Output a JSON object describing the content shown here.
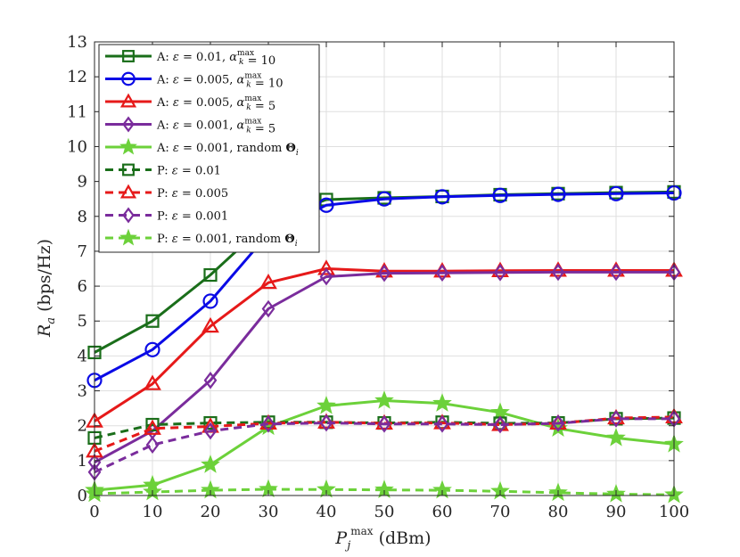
{
  "chart_data": {
    "type": "line",
    "xlabel": "P_j^max (dBm)",
    "ylabel": "R_a  (bps/Hz)",
    "xlim": [
      0,
      100
    ],
    "ylim": [
      0,
      13
    ],
    "xticks": [
      0,
      10,
      20,
      30,
      40,
      50,
      60,
      70,
      80,
      90,
      100
    ],
    "yticks": [
      0,
      1,
      2,
      3,
      4,
      5,
      6,
      7,
      8,
      9,
      10,
      11,
      12,
      13
    ],
    "grid": true,
    "legend_position": "top-left",
    "x": [
      0,
      10,
      20,
      30,
      40,
      50,
      60,
      70,
      80,
      90,
      100
    ],
    "series": [
      {
        "name": "A: ε = 0.01, α_k^max = 10",
        "color": "#1a6e1a",
        "dash": "solid",
        "marker": "square",
        "values": [
          4.1,
          5.0,
          6.32,
          7.85,
          8.48,
          8.53,
          8.57,
          8.62,
          8.65,
          8.68,
          8.7
        ]
      },
      {
        "name": "A: ε = 0.005, α_k^max = 10",
        "color": "#0a0ae6",
        "dash": "solid",
        "marker": "circle",
        "values": [
          3.3,
          4.18,
          5.57,
          7.5,
          8.32,
          8.5,
          8.56,
          8.6,
          8.63,
          8.65,
          8.67
        ]
      },
      {
        "name": "A: ε = 0.005, α_k^max = 5",
        "color": "#e61919",
        "dash": "solid",
        "marker": "triangle",
        "values": [
          2.13,
          3.2,
          4.85,
          6.1,
          6.5,
          6.43,
          6.43,
          6.44,
          6.45,
          6.45,
          6.45
        ]
      },
      {
        "name": "A: ε = 0.001, α_k^max = 5",
        "color": "#7a2c9c",
        "dash": "solid",
        "marker": "diamond",
        "values": [
          0.95,
          1.85,
          3.3,
          5.35,
          6.27,
          6.37,
          6.38,
          6.39,
          6.4,
          6.4,
          6.4
        ]
      },
      {
        "name": "A: ε = 0.001, random Θ_i",
        "color": "#6cd13a",
        "dash": "solid",
        "marker": "star",
        "values": [
          0.15,
          0.3,
          0.88,
          1.97,
          2.57,
          2.72,
          2.64,
          2.38,
          1.92,
          1.65,
          1.47
        ]
      },
      {
        "name": "P: ε = 0.01",
        "color": "#1a6e1a",
        "dash": "dashed",
        "marker": "square",
        "values": [
          1.65,
          2.03,
          2.08,
          2.1,
          2.1,
          2.08,
          2.1,
          2.07,
          2.08,
          2.2,
          2.22
        ]
      },
      {
        "name": "P: ε = 0.005",
        "color": "#e61919",
        "dash": "dashed",
        "marker": "triangle",
        "values": [
          1.27,
          1.92,
          1.98,
          2.07,
          2.1,
          2.07,
          2.08,
          2.03,
          2.07,
          2.22,
          2.25
        ]
      },
      {
        "name": "P: ε = 0.001",
        "color": "#7a2c9c",
        "dash": "dashed",
        "marker": "diamond",
        "values": [
          0.67,
          1.45,
          1.85,
          2.05,
          2.08,
          2.05,
          2.05,
          2.03,
          2.07,
          2.2,
          2.2
        ]
      },
      {
        "name": "P: ε = 0.001, random Θ_i",
        "color": "#6cd13a",
        "dash": "dashed",
        "marker": "star",
        "values": [
          0.05,
          0.1,
          0.15,
          0.18,
          0.17,
          0.16,
          0.15,
          0.12,
          0.08,
          0.04,
          0.02
        ]
      }
    ]
  }
}
